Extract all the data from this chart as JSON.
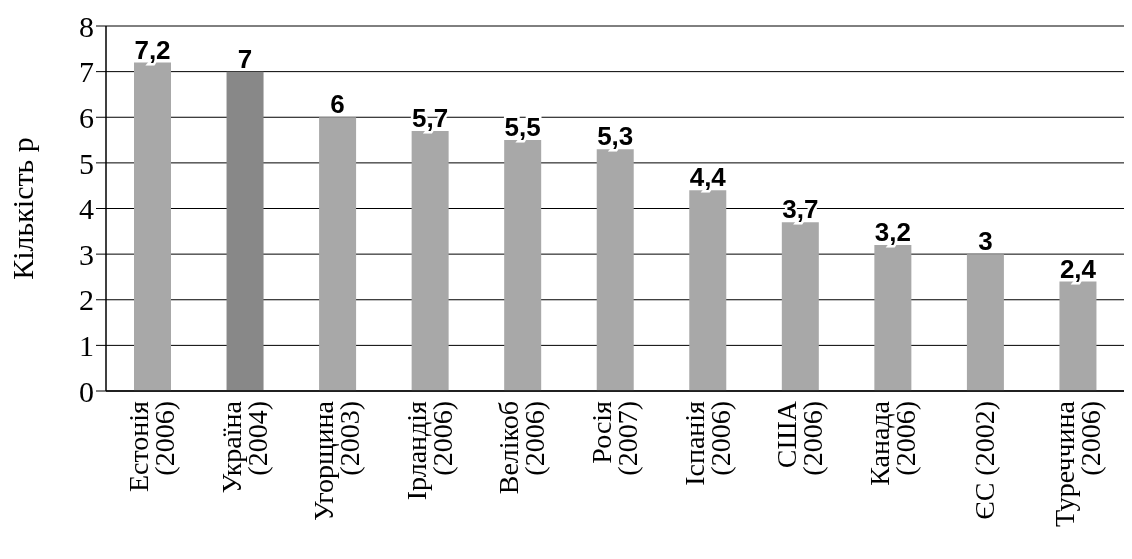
{
  "chart_data": {
    "type": "bar",
    "ylabel": "Кількість р",
    "categories": [
      "Естонія\n(2006)",
      "Україна\n(2004)",
      "Угорщина\n(2003)",
      "Ірландія\n(2006)",
      "Велікоб\n(2006)",
      "Росія\n(2007)",
      "Іспанія\n(2006)",
      "США\n(2006)",
      "Канада\n(2006)",
      "ЄС (2002)",
      "Туреччина\n(2006)"
    ],
    "values": [
      7.2,
      7,
      6,
      5.7,
      5.5,
      5.3,
      4.4,
      3.7,
      3.2,
      3,
      2.4
    ],
    "value_labels": [
      "7,2",
      "7",
      "6",
      "5,7",
      "5,5",
      "5,3",
      "4,4",
      "3,7",
      "3,2",
      "3",
      "2,4"
    ],
    "colors": [
      "#a8a8a8",
      "#888888",
      "#a8a8a8",
      "#a8a8a8",
      "#a8a8a8",
      "#a8a8a8",
      "#a8a8a8",
      "#a8a8a8",
      "#a8a8a8",
      "#a8a8a8",
      "#a8a8a8"
    ],
    "ylim": [
      0,
      8
    ],
    "yticks": [
      0,
      1,
      2,
      3,
      4,
      5,
      6,
      7,
      8
    ],
    "grid": "y",
    "legend": false
  }
}
